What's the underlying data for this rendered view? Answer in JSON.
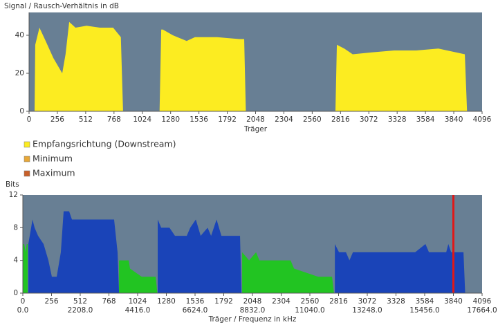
{
  "chart_data": [
    {
      "type": "area",
      "title": "Signal / Rausch-Verhältnis in dB",
      "xlabel": "Träger",
      "xlim": [
        0,
        4096
      ],
      "xticks": [
        0,
        256,
        512,
        768,
        1024,
        1280,
        1536,
        1792,
        2048,
        2304,
        2560,
        2816,
        3072,
        3328,
        3584,
        3840,
        4096
      ],
      "ylim": [
        0,
        52
      ],
      "yticks": [
        0,
        20,
        40
      ],
      "background": "#687f94",
      "legend": "bottom",
      "series": [
        {
          "name": "Empfangsrichtung (Downstream)",
          "color": "#fcec21",
          "x": [
            0,
            50,
            56,
            94,
            150,
            220,
            300,
            330,
            363,
            420,
            520,
            640,
            760,
            830,
            850,
            1180,
            1195,
            1210,
            1300,
            1425,
            1500,
            1700,
            1900,
            1945,
            1960,
            2770,
            2783,
            2850,
            2926,
            3100,
            3300,
            3500,
            3700,
            3940,
            3960,
            4096
          ],
          "values": [
            0,
            0,
            35,
            44,
            37,
            28,
            20,
            30,
            47,
            44,
            45,
            44,
            44,
            39,
            0,
            0,
            43,
            43,
            40,
            37,
            39,
            39,
            38,
            38,
            0,
            0,
            35,
            33,
            30,
            31,
            32,
            32,
            33,
            30,
            0,
            0
          ]
        },
        {
          "name": "Minimum",
          "color": "#e8a838",
          "x": [],
          "values": []
        },
        {
          "name": "Maximum",
          "color": "#c8602a",
          "x": [],
          "values": []
        }
      ]
    },
    {
      "type": "area",
      "title": "Bits",
      "xlabel": "Träger / Frequenz in kHz",
      "xlim": [
        0,
        4096
      ],
      "xticks": [
        0,
        256,
        512,
        768,
        1024,
        1280,
        1536,
        1792,
        2048,
        2304,
        2560,
        2816,
        3072,
        3328,
        3584,
        3840,
        4096
      ],
      "x2lim": [
        0,
        17664
      ],
      "x2ticks": [
        {
          "value": 0,
          "label": "0.0"
        },
        {
          "value": 2208,
          "label": "2208.0"
        },
        {
          "value": 4416,
          "label": "4416.0"
        },
        {
          "value": 6624,
          "label": "6624.0"
        },
        {
          "value": 8832,
          "label": "8832.0"
        },
        {
          "value": 11040,
          "label": "11040.0"
        },
        {
          "value": 13248,
          "label": "13248.0"
        },
        {
          "value": 15456,
          "label": "15456.0"
        },
        {
          "value": 17664,
          "label": "17664.0"
        }
      ],
      "ylim": [
        0,
        12
      ],
      "yticks": [
        0,
        4,
        8,
        12
      ],
      "background": "#687f94",
      "marker": {
        "x": 3840,
        "color": "#e01818"
      },
      "series": [
        {
          "color": "#22c422",
          "x": [
            0,
            12,
            25,
            35,
            43
          ],
          "values": [
            6,
            6,
            5,
            6,
            6
          ]
        },
        {
          "color": "#1a44b8",
          "x": [
            49,
            74,
            86,
            105,
            136,
            185,
            228,
            259,
            302,
            339,
            364,
            413,
            438,
            814,
            845,
            858
          ],
          "values": [
            6,
            8,
            9,
            8,
            7,
            6,
            4,
            2,
            2,
            5,
            10,
            10,
            9,
            9,
            5,
            0
          ]
        },
        {
          "color": "#22c422",
          "x": [
            858,
            944,
            956,
            1061,
            1185,
            1200
          ],
          "values": [
            4,
            4,
            3,
            2,
            2,
            0
          ]
        },
        {
          "color": "#1a44b8",
          "x": [
            1203,
            1234,
            1308,
            1357,
            1462,
            1493,
            1543,
            1586,
            1648,
            1679,
            1728,
            1771,
            1894,
            1937,
            1950
          ],
          "values": [
            9,
            8,
            8,
            7,
            7,
            8,
            9,
            7,
            8,
            7,
            9,
            7,
            7,
            7,
            0
          ]
        },
        {
          "color": "#22c422",
          "x": [
            1956,
            2018,
            2080,
            2110,
            2388,
            2419,
            2635,
            2758,
            2775
          ],
          "values": [
            5,
            4,
            5,
            4,
            4,
            3,
            2,
            2,
            0
          ]
        },
        {
          "color": "#1a44b8",
          "x": [
            2783,
            2820,
            2882,
            2913,
            2944,
            3006,
            3499,
            3591,
            3622,
            3776,
            3795,
            3820,
            3930,
            3945
          ],
          "values": [
            6,
            5,
            5,
            4,
            5,
            5,
            5,
            6,
            5,
            5,
            6,
            5,
            5,
            0
          ]
        }
      ]
    }
  ]
}
